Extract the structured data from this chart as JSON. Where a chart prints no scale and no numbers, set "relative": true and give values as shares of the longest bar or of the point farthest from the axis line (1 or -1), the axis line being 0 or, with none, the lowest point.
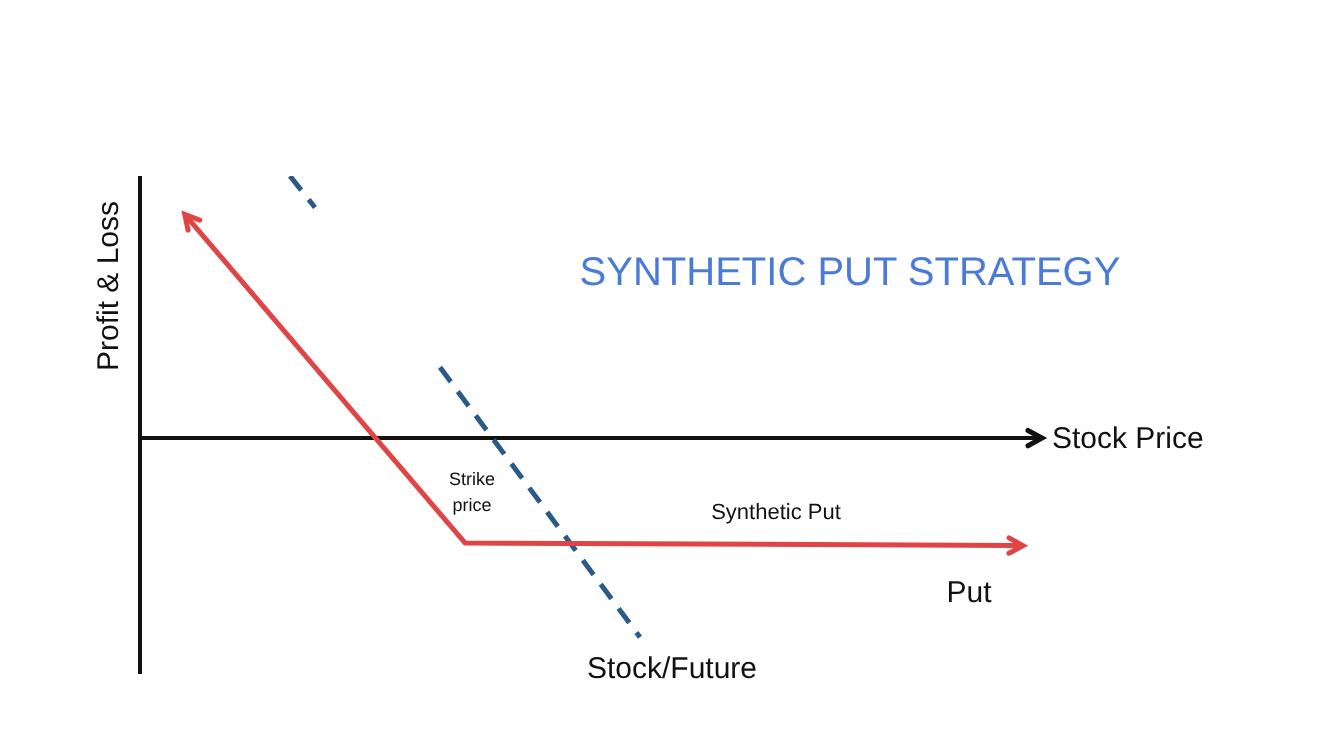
{
  "chart_data": {
    "type": "line",
    "title": "SYNTHETIC PUT STRATEGY",
    "xlabel": "Stock Price",
    "ylabel": "Profit & Loss",
    "relative": true,
    "legend": false,
    "annotations": [
      "Strike price",
      "Put"
    ],
    "categories": [
      null,
      null,
      null,
      null,
      null,
      null,
      null,
      null,
      null,
      null,
      null,
      null,
      null,
      null,
      null,
      null,
      null,
      null,
      null,
      null,
      null,
      null,
      null,
      null,
      null,
      null,
      null,
      null,
      null,
      null,
      null,
      null,
      null,
      null,
      null,
      null,
      null
    ],
    "series": [
      {
        "name": "Synthetic Put",
        "color": "#e04444",
        "line_style": "solid",
        "values": [
          null,
          null,
          0.83,
          null,
          null,
          null,
          null,
          null,
          null,
          null,
          null,
          null,
          null,
          -0.4,
          null,
          null,
          null,
          null,
          null,
          null,
          null,
          null,
          null,
          null,
          null,
          null,
          null,
          null,
          null,
          null,
          null,
          null,
          null,
          null,
          null,
          -0.41,
          null
        ]
      },
      {
        "color": "#2a5a8c",
        "line_style": "dashed",
        "values": [
          null,
          null,
          null,
          null,
          null,
          null,
          1,
          0.88,
          null,
          null,
          null,
          null,
          null,
          null,
          null,
          null,
          null,
          null,
          null,
          null,
          null,
          null,
          null,
          null,
          null,
          null,
          null,
          null,
          null,
          null,
          null,
          null,
          null,
          null,
          null,
          null,
          null
        ]
      },
      {
        "name": "Stock/Future",
        "color": "#2a5a8c",
        "line_style": "dashed",
        "values": [
          null,
          null,
          null,
          null,
          null,
          null,
          null,
          null,
          null,
          null,
          null,
          null,
          0.27,
          null,
          null,
          null,
          null,
          null,
          null,
          null,
          -0.76,
          null,
          null,
          null,
          null,
          null,
          null,
          null,
          null,
          null,
          null,
          null,
          null,
          null,
          null,
          null,
          null
        ]
      }
    ]
  }
}
